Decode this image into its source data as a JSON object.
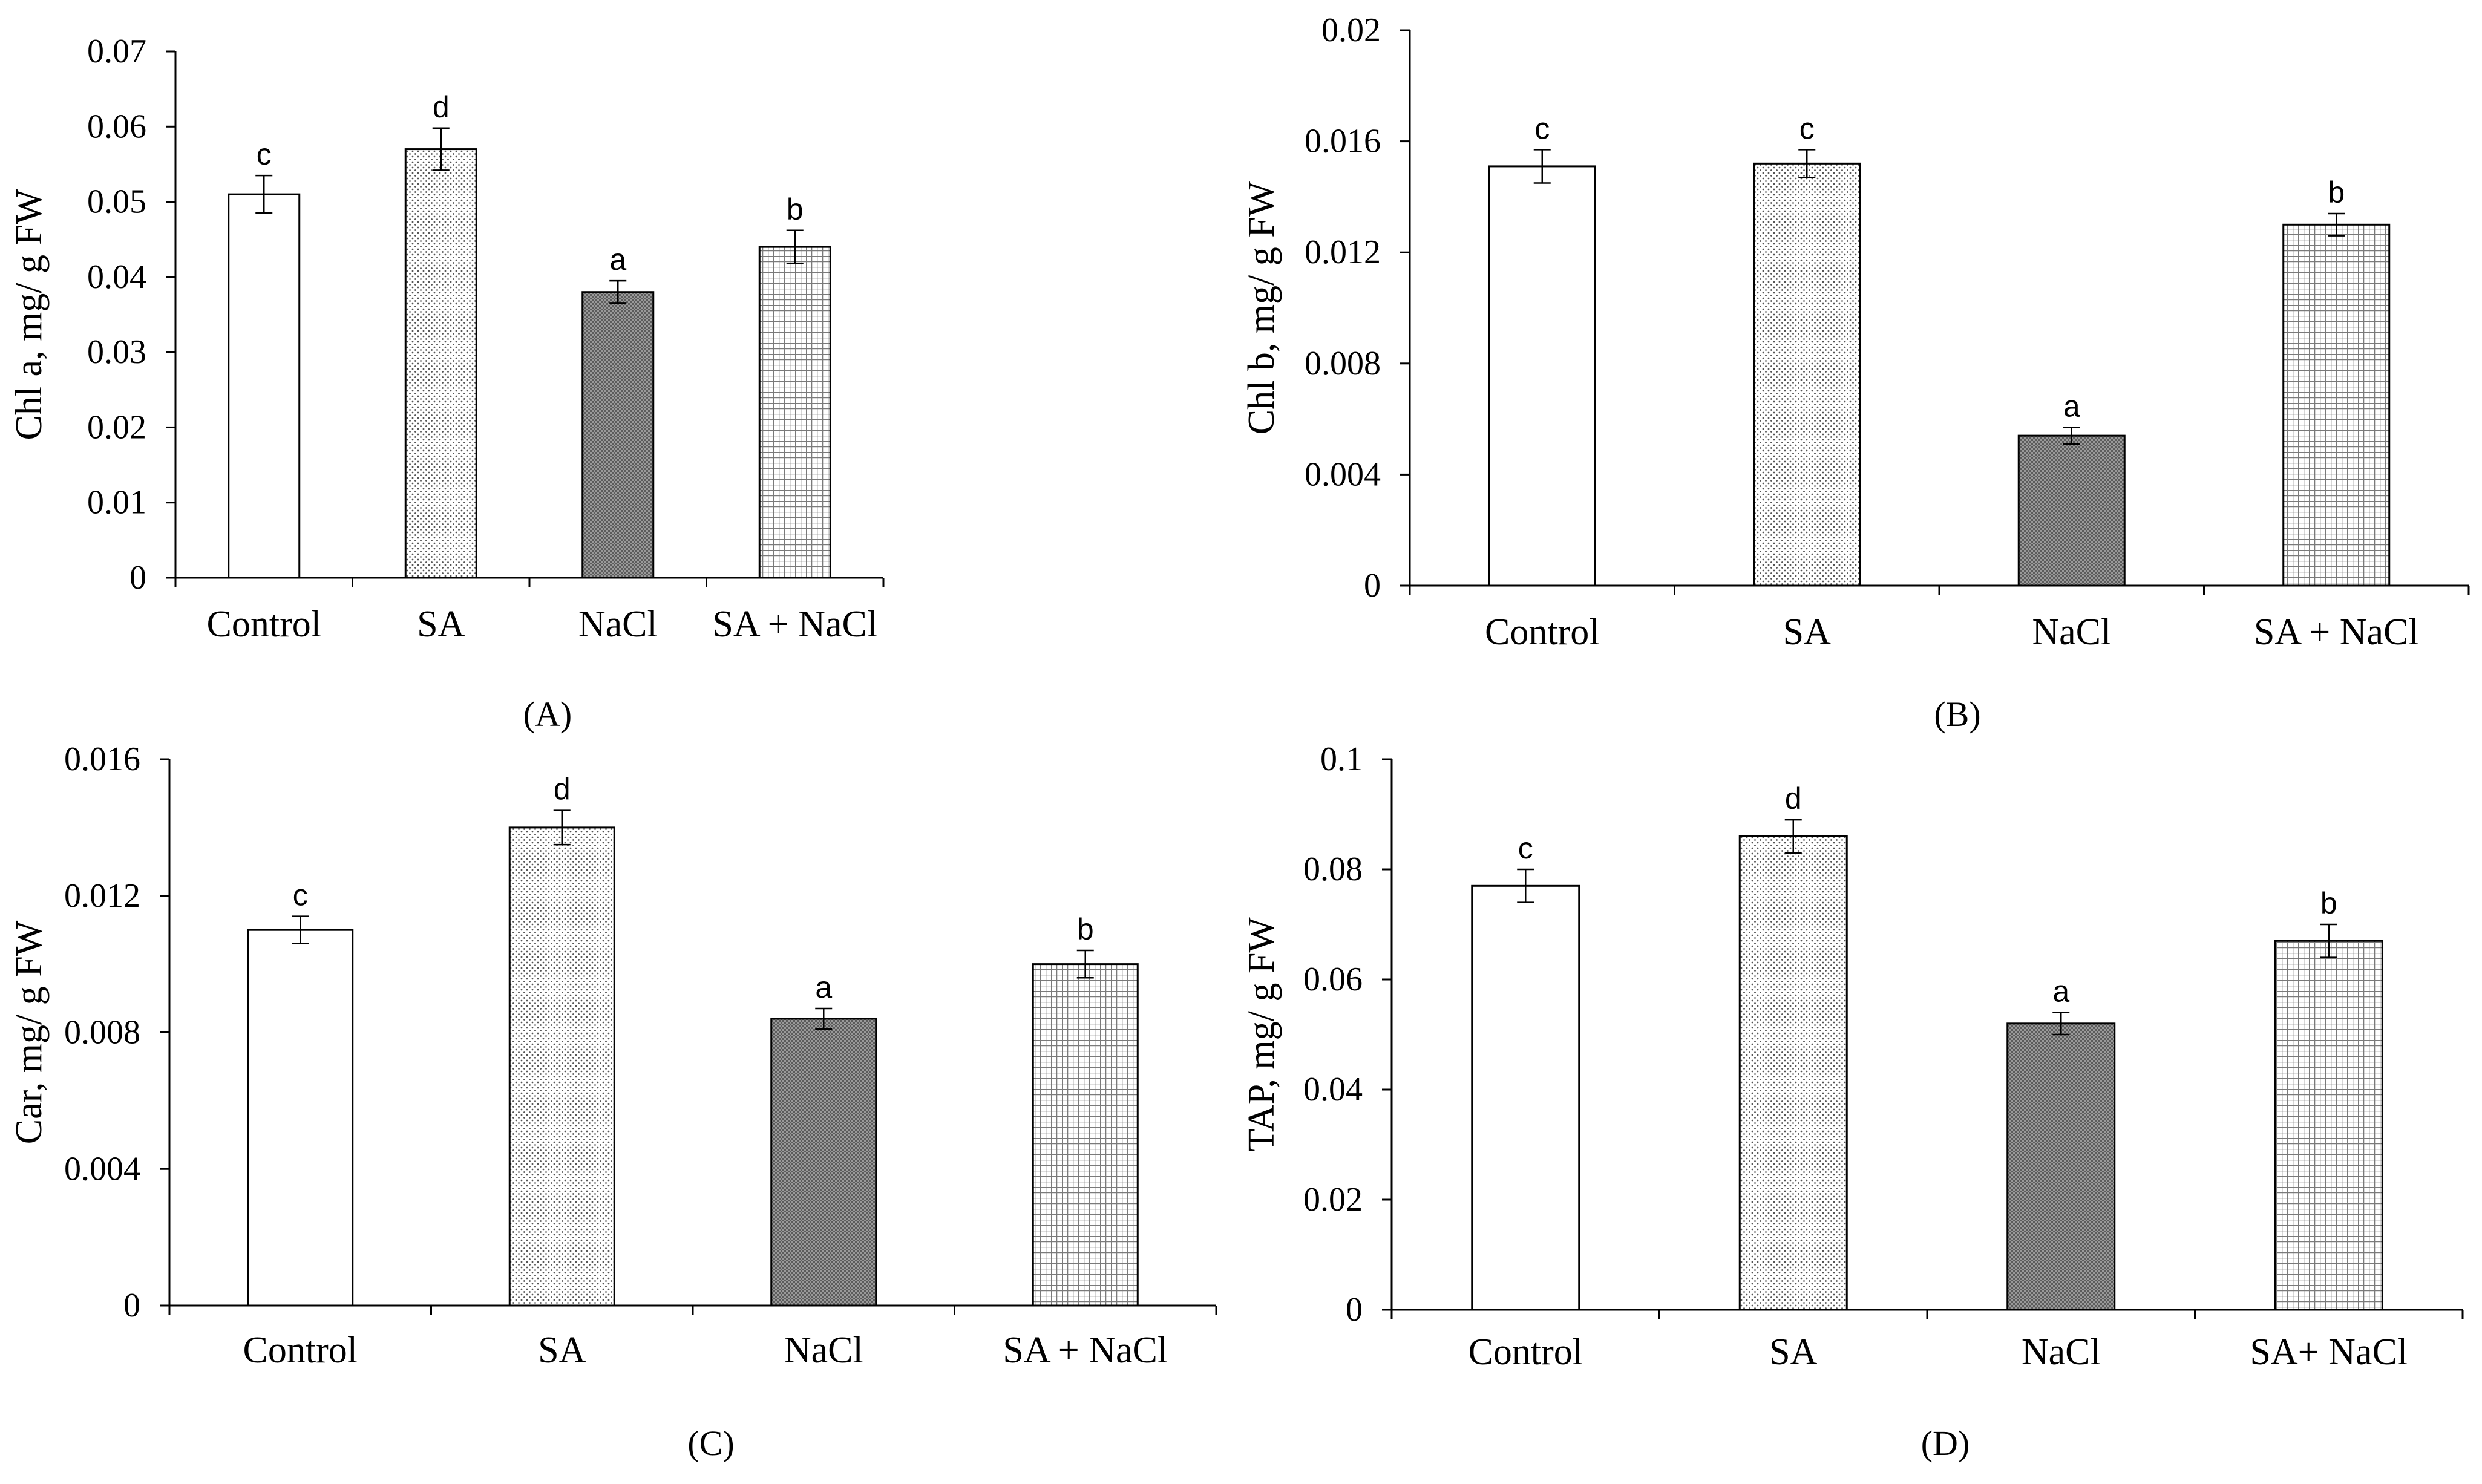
{
  "chart_data": [
    {
      "panel": "(A)",
      "type": "bar",
      "categories": [
        "Control",
        "SA",
        "NaCl",
        "SA + NaCl"
      ],
      "values": [
        0.051,
        0.057,
        0.038,
        0.044
      ],
      "errors": [
        0.0025,
        0.0028,
        0.0015,
        0.0022
      ],
      "letters": [
        "c",
        "d",
        "a",
        "b"
      ],
      "ylabel": "Chl a, mg/ g FW",
      "ylim": [
        0,
        0.07
      ],
      "yticks": [
        "0",
        "0.01",
        "0.02",
        "0.03",
        "0.04",
        "0.05",
        "0.06",
        "0.07"
      ],
      "patterns": [
        "white",
        "fine-dots",
        "dense-dark",
        "grid"
      ]
    },
    {
      "panel": "(B)",
      "type": "bar",
      "categories": [
        "Control",
        "SA",
        "NaCl",
        "SA + NaCl"
      ],
      "values": [
        0.0151,
        0.0152,
        0.0054,
        0.013
      ],
      "errors": [
        0.0006,
        0.0005,
        0.0003,
        0.0004
      ],
      "letters": [
        "c",
        "c",
        "a",
        "b"
      ],
      "ylabel": "Chl b, mg/ g FW",
      "ylim": [
        0,
        0.02
      ],
      "yticks": [
        "0",
        "0.004",
        "0.008",
        "0.012",
        "0.016",
        "0.02"
      ],
      "patterns": [
        "white",
        "fine-dots",
        "dense-dark",
        "grid"
      ]
    },
    {
      "panel": "(C)",
      "type": "bar",
      "categories": [
        "Control",
        "SA",
        "NaCl",
        "SA + NaCl"
      ],
      "values": [
        0.011,
        0.014,
        0.0084,
        0.01
      ],
      "errors": [
        0.0004,
        0.0005,
        0.0003,
        0.0004
      ],
      "letters": [
        "c",
        "d",
        "a",
        "b"
      ],
      "ylabel": "Car, mg/ g FW",
      "ylim": [
        0,
        0.016
      ],
      "yticks": [
        "0",
        "0.004",
        "0.008",
        "0.012",
        "0.016"
      ],
      "patterns": [
        "white",
        "fine-dots",
        "dense-dark",
        "grid"
      ]
    },
    {
      "panel": "(D)",
      "type": "bar",
      "categories": [
        "Control",
        "SA",
        "NaCl",
        "SA+ NaCl"
      ],
      "values": [
        0.077,
        0.086,
        0.052,
        0.067
      ],
      "errors": [
        0.003,
        0.003,
        0.002,
        0.003
      ],
      "letters": [
        "c",
        "d",
        "a",
        "b"
      ],
      "ylabel": "TAP, mg/ g FW",
      "ylim": [
        0,
        0.1
      ],
      "yticks": [
        "0",
        "0.02",
        "0.04",
        "0.06",
        "0.08",
        "0.1"
      ],
      "patterns": [
        "white",
        "fine-dots",
        "dense-dark",
        "grid"
      ]
    }
  ],
  "colors": {
    "axis": "#000000",
    "bar_stroke": "#000000",
    "white_fill": "#ffffff",
    "dot": "#555555",
    "dark_fill": "#6e6e6e",
    "grid_line": "#8a8a8a"
  }
}
